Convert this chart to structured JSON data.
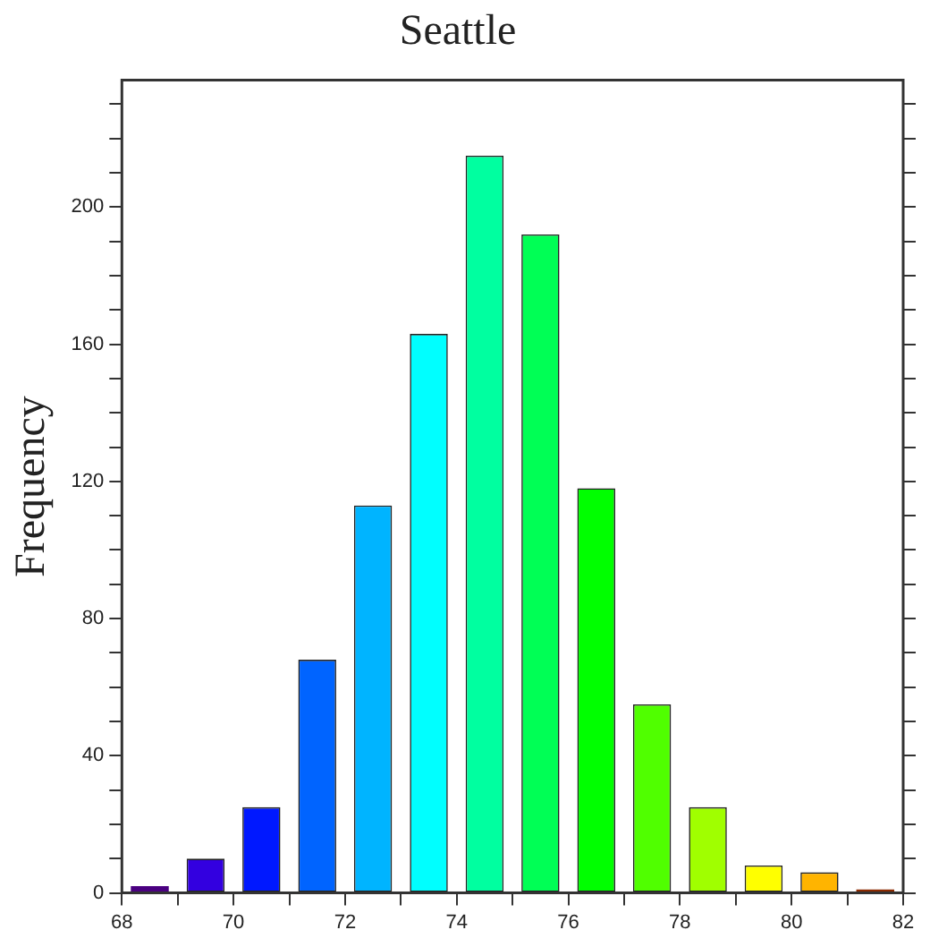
{
  "chart_data": {
    "type": "histogram",
    "title": "Seattle",
    "ylabel": "Frequency",
    "bins": [
      68,
      69,
      70,
      71,
      72,
      73,
      74,
      75,
      76,
      77,
      78,
      79,
      80,
      81,
      82
    ],
    "values": [
      2,
      10,
      25,
      68,
      113,
      163,
      215,
      192,
      118,
      55,
      25,
      8,
      6,
      1
    ],
    "colors": [
      "#4a0080",
      "#3300e0",
      "#0018ff",
      "#0064ff",
      "#00b4ff",
      "#00ffff",
      "#00ffa0",
      "#00ff55",
      "#00ff00",
      "#50ff00",
      "#a0ff00",
      "#ffff00",
      "#ffb400",
      "#8b2a00"
    ],
    "xlim": [
      68,
      82
    ],
    "xticks": [
      68,
      {
        "value": 69,
        "label": null
      },
      70,
      {
        "value": 71,
        "label": null
      },
      72,
      {
        "value": 73,
        "label": null
      },
      74,
      {
        "value": 75,
        "label": null
      },
      76,
      {
        "value": 77,
        "label": null
      },
      78,
      {
        "value": 79,
        "label": null
      },
      80,
      {
        "value": 81,
        "label": null
      },
      82
    ],
    "ylim": [
      0,
      237
    ],
    "yticks": [
      0,
      {
        "value": 10,
        "label": null
      },
      {
        "value": 20,
        "label": null
      },
      {
        "value": 30,
        "label": null
      },
      40,
      {
        "value": 50,
        "label": null
      },
      {
        "value": 60,
        "label": null
      },
      {
        "value": 70,
        "label": null
      },
      80,
      {
        "value": 90,
        "label": null
      },
      {
        "value": 100,
        "label": null
      },
      {
        "value": 110,
        "label": null
      },
      120,
      {
        "value": 130,
        "label": null
      },
      {
        "value": 140,
        "label": null
      },
      {
        "value": 150,
        "label": null
      },
      160,
      {
        "value": 170,
        "label": null
      },
      {
        "value": 180,
        "label": null
      },
      {
        "value": 190,
        "label": null
      },
      200,
      {
        "value": 210,
        "label": null
      },
      {
        "value": 220,
        "label": null
      },
      {
        "value": 230,
        "label": null
      }
    ],
    "grid": false
  }
}
